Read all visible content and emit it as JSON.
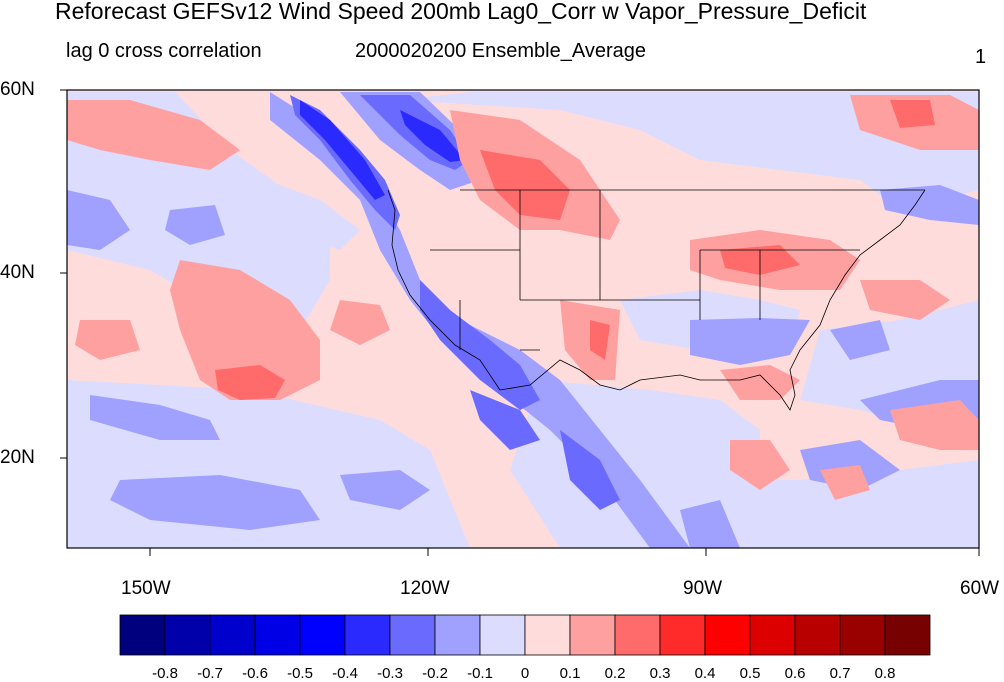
{
  "title": "Reforecast GEFSv12 Wind Speed 200mb Lag0_Corr w Vapor_Pressure_Deficit",
  "subtitle_left": "lag 0 cross correlation",
  "subtitle_center": "2000020200 Ensemble_Average",
  "subtitle_right": "1",
  "lat_labels": [
    "60N",
    "40N",
    "20N"
  ],
  "lon_labels": [
    "150W",
    "120W",
    "90W",
    "60W"
  ],
  "colorbar": {
    "labels": [
      "-0.8",
      "-0.7",
      "-0.6",
      "-0.5",
      "-0.4",
      "-0.3",
      "-0.2",
      "-0.1",
      "0",
      "0.1",
      "0.2",
      "0.3",
      "0.4",
      "0.5",
      "0.6",
      "0.7",
      "0.8"
    ],
    "colors": [
      "#00007f",
      "#0000aa",
      "#0000cc",
      "#0000e6",
      "#0000ff",
      "#2a2aff",
      "#6a6aff",
      "#a0a0ff",
      "#dcdcff",
      "#ffdcdc",
      "#ffa0a0",
      "#ff6a6a",
      "#ff2a2a",
      "#ff0000",
      "#dd0000",
      "#b80000",
      "#990000",
      "#770000"
    ]
  },
  "map": {
    "background_color": "#ffdcdc",
    "border_color": "#000000"
  }
}
